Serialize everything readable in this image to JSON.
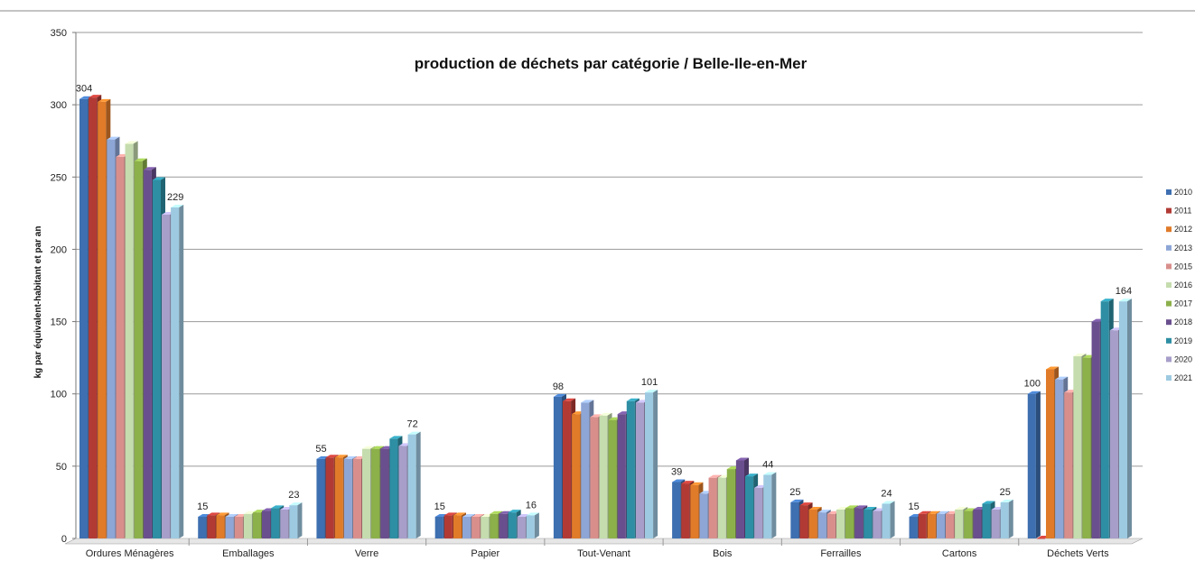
{
  "chart_data": {
    "type": "bar",
    "title": "production de déchets par catégorie / Belle-Ile-en-Mer",
    "xlabel": "",
    "ylabel": "kg par équivalent-habitant et par an",
    "ylim": [
      0,
      350
    ],
    "yticks": [
      0,
      50,
      100,
      150,
      200,
      250,
      300,
      350
    ],
    "grid": true,
    "legend": "right",
    "categories": [
      "Ordures Ménagères",
      "Emballages",
      "Verre",
      "Papier",
      "Tout-Venant",
      "Bois",
      "Ferrailles",
      "Cartons",
      "Déchets Verts"
    ],
    "series": [
      {
        "name": "2010",
        "color": "#3e6fb0",
        "values": [
          304,
          15,
          55,
          15,
          98,
          39,
          25,
          15,
          100
        ]
      },
      {
        "name": "2011",
        "color": "#b23a35",
        "values": [
          305,
          16,
          56,
          16,
          95,
          38,
          23,
          17,
          0
        ]
      },
      {
        "name": "2012",
        "color": "#e07b2a",
        "values": [
          302,
          16,
          56,
          16,
          86,
          37,
          20,
          17,
          117
        ]
      },
      {
        "name": "2013",
        "color": "#8ea6d6",
        "values": [
          276,
          15,
          55,
          15,
          94,
          31,
          18,
          17,
          110
        ]
      },
      {
        "name": "2015",
        "color": "#d88f8c",
        "values": [
          264,
          15,
          55,
          15,
          84,
          42,
          17,
          17,
          101
        ]
      },
      {
        "name": "2016",
        "color": "#c5dcae",
        "values": [
          273,
          17,
          62,
          15,
          85,
          42,
          20,
          20,
          126
        ]
      },
      {
        "name": "2017",
        "color": "#8cb04a",
        "values": [
          261,
          18,
          62,
          17,
          82,
          48,
          21,
          19,
          125
        ]
      },
      {
        "name": "2018",
        "color": "#6a4f8e",
        "values": [
          255,
          19,
          62,
          17,
          86,
          54,
          21,
          20,
          150
        ]
      },
      {
        "name": "2019",
        "color": "#2e8ea3",
        "values": [
          248,
          21,
          69,
          18,
          95,
          43,
          20,
          24,
          164
        ]
      },
      {
        "name": "2020",
        "color": "#a79ec9",
        "values": [
          224,
          20,
          64,
          15,
          94,
          35,
          19,
          20,
          144
        ]
      },
      {
        "name": "2021",
        "color": "#9ecae1",
        "values": [
          229,
          23,
          72,
          16,
          101,
          44,
          24,
          25,
          164
        ]
      }
    ],
    "data_labels": [
      {
        "category": 0,
        "series": 0,
        "text": "304"
      },
      {
        "category": 0,
        "series": 10,
        "text": "229"
      },
      {
        "category": 1,
        "series": 0,
        "text": "15"
      },
      {
        "category": 1,
        "series": 10,
        "text": "23"
      },
      {
        "category": 2,
        "series": 0,
        "text": "55"
      },
      {
        "category": 2,
        "series": 10,
        "text": "72"
      },
      {
        "category": 3,
        "series": 0,
        "text": "15"
      },
      {
        "category": 3,
        "series": 10,
        "text": "16"
      },
      {
        "category": 4,
        "series": 0,
        "text": "98"
      },
      {
        "category": 4,
        "series": 10,
        "text": "101"
      },
      {
        "category": 5,
        "series": 0,
        "text": "39"
      },
      {
        "category": 5,
        "series": 10,
        "text": "44"
      },
      {
        "category": 6,
        "series": 0,
        "text": "25"
      },
      {
        "category": 6,
        "series": 10,
        "text": "24"
      },
      {
        "category": 7,
        "series": 0,
        "text": "15"
      },
      {
        "category": 7,
        "series": 10,
        "text": "25"
      },
      {
        "category": 8,
        "series": 0,
        "text": "100"
      },
      {
        "category": 8,
        "series": 10,
        "text": "164"
      }
    ]
  }
}
